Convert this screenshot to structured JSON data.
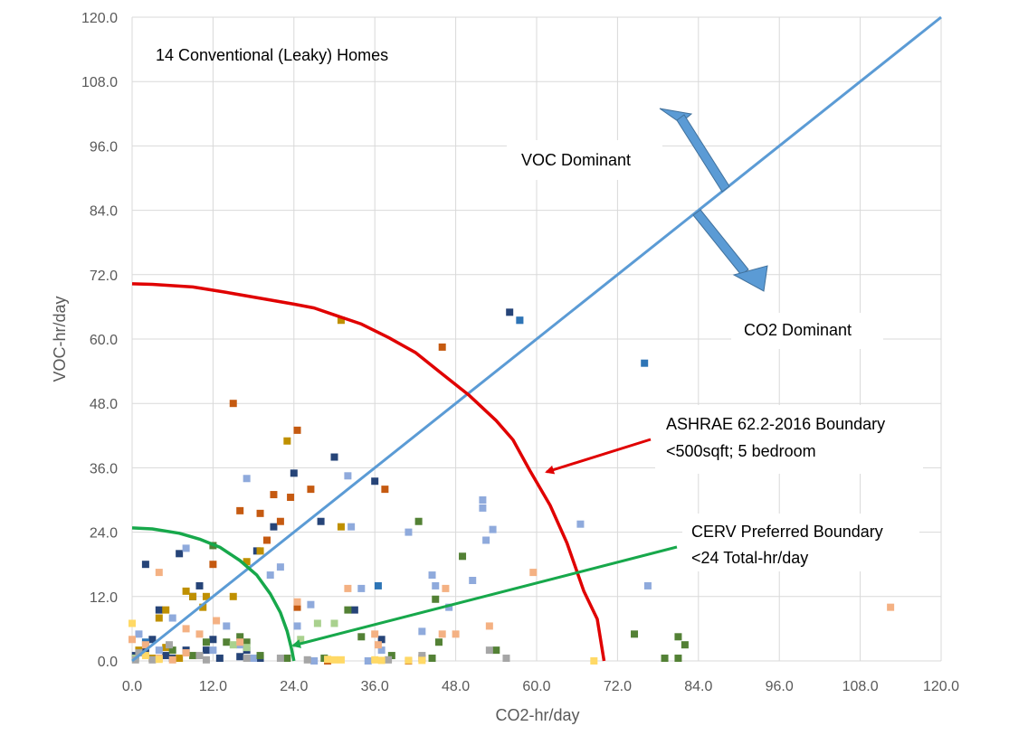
{
  "chart_data": {
    "type": "scatter",
    "title": "",
    "xlabel": "CO2-hr/day",
    "ylabel": "VOC-hr/day",
    "xlim": [
      0,
      120
    ],
    "ylim": [
      0,
      120
    ],
    "xticks": [
      "0.0",
      "12.0",
      "24.0",
      "36.0",
      "48.0",
      "60.0",
      "72.0",
      "84.0",
      "96.0",
      "108.0",
      "120.0"
    ],
    "yticks": [
      "0.0",
      "12.0",
      "24.0",
      "36.0",
      "48.0",
      "60.0",
      "72.0",
      "84.0",
      "96.0",
      "108.0",
      "120.0"
    ],
    "grid": true,
    "annotations": {
      "homes": "14 Conventional  (Leaky) Homes",
      "voc_dominant": "VOC Dominant",
      "co2_dominant": "CO2 Dominant",
      "ashrae_line1": "ASHRAE  62.2-2016 Boundary",
      "ashrae_line2": "<500sqft; 5 bedroom",
      "cerv_line1": "CERV Preferred  Boundary",
      "cerv_line2": "<24 Total-hr/day"
    },
    "lines": [
      {
        "id": "diagonal",
        "color": "#5b9bd5",
        "points": [
          [
            0,
            0
          ],
          [
            120,
            120
          ]
        ]
      },
      {
        "id": "ashrae",
        "color": "#e00000",
        "points": [
          [
            0,
            70.3
          ],
          [
            3,
            70.2
          ],
          [
            9,
            69.7
          ],
          [
            14,
            68.7
          ],
          [
            19,
            67.6
          ],
          [
            24,
            66.5
          ],
          [
            27,
            65.8
          ],
          [
            30,
            64.5
          ],
          [
            34,
            62.8
          ],
          [
            38,
            60.3
          ],
          [
            42,
            57.5
          ],
          [
            46,
            53.5
          ],
          [
            50,
            49.5
          ],
          [
            54,
            44.8
          ],
          [
            56.5,
            41.2
          ],
          [
            59,
            35.5
          ],
          [
            62,
            29
          ],
          [
            64.5,
            22
          ],
          [
            67,
            13
          ],
          [
            69,
            7.8
          ],
          [
            70,
            0
          ]
        ]
      },
      {
        "id": "cerv",
        "color": "#17a84b",
        "points": [
          [
            0,
            24.8
          ],
          [
            3,
            24.6
          ],
          [
            7,
            23.8
          ],
          [
            10,
            22.7
          ],
          [
            13,
            21.2
          ],
          [
            16,
            18.7
          ],
          [
            18.5,
            16
          ],
          [
            20.5,
            12.5
          ],
          [
            22,
            9
          ],
          [
            23,
            5.5
          ],
          [
            23.6,
            2.5
          ],
          [
            24,
            0
          ]
        ]
      }
    ],
    "series": [
      {
        "color": "#264478",
        "points": [
          [
            2,
            18
          ],
          [
            7,
            20
          ],
          [
            11,
            2
          ],
          [
            12,
            4
          ],
          [
            18.5,
            20.5
          ],
          [
            21,
            25
          ],
          [
            24,
            35
          ],
          [
            28,
            26
          ],
          [
            30,
            38
          ],
          [
            36,
            33.5
          ],
          [
            33,
            9.5
          ],
          [
            37,
            4
          ],
          [
            56,
            65
          ],
          [
            0.5,
            1
          ],
          [
            2,
            2
          ],
          [
            3,
            4
          ],
          [
            4,
            9.5
          ],
          [
            5,
            1
          ],
          [
            6,
            0.5
          ],
          [
            8,
            2
          ],
          [
            13,
            0.5
          ],
          [
            16,
            0.8
          ],
          [
            17,
            2
          ],
          [
            19,
            0.5
          ],
          [
            9,
            12
          ],
          [
            10,
            14
          ]
        ]
      },
      {
        "color": "#c55a11",
        "points": [
          [
            15,
            48
          ],
          [
            16,
            28
          ],
          [
            19,
            27.5
          ],
          [
            20,
            22.5
          ],
          [
            21,
            31
          ],
          [
            22,
            26
          ],
          [
            23.5,
            30.5
          ],
          [
            24.5,
            43
          ],
          [
            26.5,
            32
          ],
          [
            37.5,
            32
          ],
          [
            46,
            58.5
          ],
          [
            12,
            18
          ],
          [
            24.5,
            10
          ],
          [
            29,
            0
          ],
          [
            41,
            0
          ],
          [
            43,
            0.5
          ]
        ]
      },
      {
        "color": "#bf9000",
        "points": [
          [
            4,
            8
          ],
          [
            5,
            9.5
          ],
          [
            8,
            13
          ],
          [
            9,
            12
          ],
          [
            10.5,
            10
          ],
          [
            11,
            12
          ],
          [
            15,
            12
          ],
          [
            17,
            18.5
          ],
          [
            19,
            20.5
          ],
          [
            23,
            41
          ],
          [
            31,
            25
          ],
          [
            31,
            63.5
          ],
          [
            1,
            2
          ],
          [
            3,
            0.5
          ],
          [
            5,
            2.5
          ],
          [
            7,
            0.5
          ]
        ]
      },
      {
        "color": "#8faadc",
        "points": [
          [
            17,
            34
          ],
          [
            20.5,
            16
          ],
          [
            22,
            17.5
          ],
          [
            24.5,
            6.5
          ],
          [
            26.5,
            10.5
          ],
          [
            32,
            34.5
          ],
          [
            32.5,
            25
          ],
          [
            34,
            13.5
          ],
          [
            41,
            24
          ],
          [
            43,
            5.5
          ],
          [
            44.5,
            16
          ],
          [
            45,
            14
          ],
          [
            47,
            10
          ],
          [
            50.5,
            15
          ],
          [
            52.5,
            22.5
          ],
          [
            53.5,
            24.5
          ],
          [
            52,
            28.5
          ],
          [
            52,
            30
          ],
          [
            66.5,
            25.5
          ],
          [
            76.5,
            14
          ],
          [
            57.5,
            63.5
          ],
          [
            1,
            5
          ],
          [
            4,
            2
          ],
          [
            6,
            8
          ],
          [
            8,
            21
          ],
          [
            12,
            2
          ],
          [
            14,
            6.5
          ],
          [
            16,
            3
          ],
          [
            18,
            0.5
          ],
          [
            27,
            0
          ],
          [
            35,
            0
          ],
          [
            37,
            2
          ]
        ]
      },
      {
        "color": "#2e75b6",
        "points": [
          [
            76,
            55.5
          ],
          [
            57.5,
            63.5
          ],
          [
            2,
            3.5
          ],
          [
            36.5,
            14
          ]
        ]
      },
      {
        "color": "#538135",
        "points": [
          [
            12,
            21.5
          ],
          [
            16,
            4.5
          ],
          [
            17,
            3.5
          ],
          [
            19,
            1
          ],
          [
            23,
            0.5
          ],
          [
            28.5,
            0.5
          ],
          [
            32,
            9.5
          ],
          [
            34,
            4.5
          ],
          [
            38.5,
            1
          ],
          [
            42.5,
            26
          ],
          [
            44.5,
            0.5
          ],
          [
            45,
            11.5
          ],
          [
            45.5,
            3.5
          ],
          [
            49,
            19.5
          ],
          [
            54,
            2
          ],
          [
            74.5,
            5
          ],
          [
            79,
            0.5
          ],
          [
            81,
            4.5
          ],
          [
            81,
            0.5
          ],
          [
            82,
            3
          ],
          [
            6,
            2
          ],
          [
            9,
            1
          ],
          [
            11,
            3.5
          ],
          [
            14,
            3.5
          ]
        ]
      },
      {
        "color": "#a9d18e",
        "points": [
          [
            27.5,
            7
          ],
          [
            30,
            7
          ],
          [
            15,
            3
          ],
          [
            17,
            2.5
          ],
          [
            25,
            4
          ],
          [
            0.5,
            0.5
          ]
        ]
      },
      {
        "color": "#f4b183",
        "points": [
          [
            0,
            4
          ],
          [
            2,
            3
          ],
          [
            4,
            16.5
          ],
          [
            8,
            6
          ],
          [
            10,
            5
          ],
          [
            12.5,
            7.5
          ],
          [
            16,
            3.5
          ],
          [
            24.5,
            11
          ],
          [
            32,
            13.5
          ],
          [
            36,
            5
          ],
          [
            36.5,
            3
          ],
          [
            46,
            5
          ],
          [
            46.5,
            13.5
          ],
          [
            48,
            5
          ],
          [
            53,
            6.5
          ],
          [
            59.5,
            16.5
          ],
          [
            112.5,
            10
          ],
          [
            4,
            0.5
          ],
          [
            6,
            0.2
          ],
          [
            8,
            1.5
          ]
        ]
      },
      {
        "color": "#a6a6a6",
        "points": [
          [
            5.5,
            3
          ],
          [
            10,
            1
          ],
          [
            11,
            0.2
          ],
          [
            17,
            0.5
          ],
          [
            22,
            0.5
          ],
          [
            26,
            0.2
          ],
          [
            38,
            0.2
          ],
          [
            43,
            1
          ],
          [
            53,
            2
          ],
          [
            55.5,
            0.5
          ],
          [
            0.5,
            0.2
          ],
          [
            1,
            1.5
          ],
          [
            3,
            0.2
          ]
        ]
      },
      {
        "color": "#ffd966",
        "points": [
          [
            0,
            7
          ],
          [
            2,
            1
          ],
          [
            4,
            0.3
          ],
          [
            29,
            0.3
          ],
          [
            30,
            0.2
          ],
          [
            31,
            0.2
          ],
          [
            36,
            0.2
          ],
          [
            37,
            0.1
          ],
          [
            41,
            0.1
          ],
          [
            43,
            0.1
          ],
          [
            68.5,
            0
          ]
        ]
      }
    ]
  }
}
